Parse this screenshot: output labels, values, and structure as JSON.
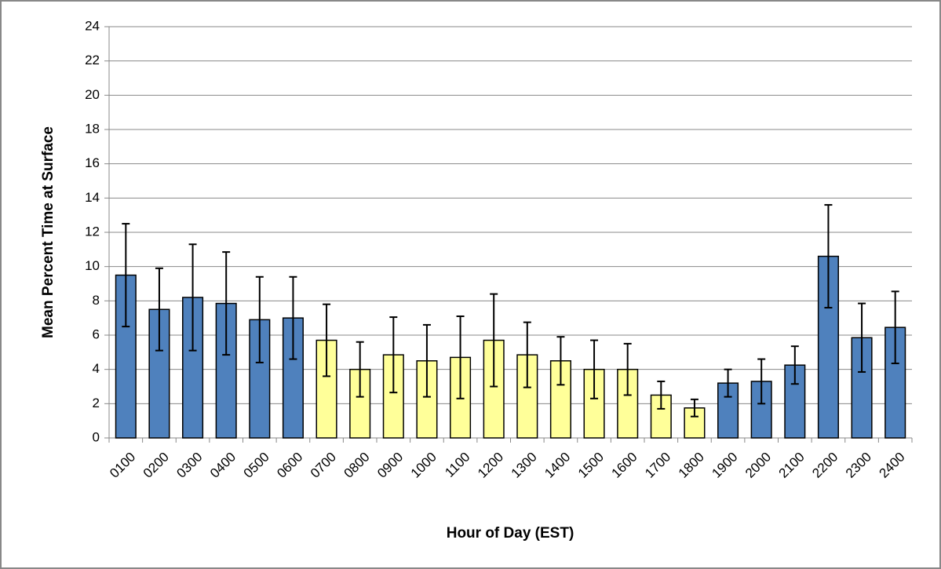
{
  "chart_data": {
    "type": "bar",
    "x_label": "Hour of Day (EST)",
    "y_label": "Mean Percent Time at Surface",
    "categories": [
      "0100",
      "0200",
      "0300",
      "0400",
      "0500",
      "0600",
      "0700",
      "0800",
      "0900",
      "1000",
      "1100",
      "1200",
      "1300",
      "1400",
      "1500",
      "1600",
      "1700",
      "1800",
      "1900",
      "2000",
      "2100",
      "2200",
      "2300",
      "2400"
    ],
    "values": [
      9.5,
      7.5,
      8.2,
      7.85,
      6.9,
      7.0,
      5.7,
      4.0,
      4.85,
      4.5,
      4.7,
      5.7,
      4.85,
      4.5,
      4.0,
      4.0,
      2.5,
      1.75,
      3.2,
      3.3,
      4.25,
      10.6,
      5.85,
      6.45
    ],
    "errors": [
      3.0,
      2.4,
      3.1,
      3.0,
      2.5,
      2.4,
      2.1,
      1.6,
      2.2,
      2.1,
      2.4,
      2.7,
      1.9,
      1.4,
      1.7,
      1.5,
      0.8,
      0.5,
      0.8,
      1.3,
      1.1,
      3.0,
      2.0,
      2.1
    ],
    "colors": [
      "#4f81bd",
      "#4f81bd",
      "#4f81bd",
      "#4f81bd",
      "#4f81bd",
      "#4f81bd",
      "#ffff99",
      "#ffff99",
      "#ffff99",
      "#ffff99",
      "#ffff99",
      "#ffff99",
      "#ffff99",
      "#ffff99",
      "#ffff99",
      "#ffff99",
      "#ffff99",
      "#ffff99",
      "#4f81bd",
      "#4f81bd",
      "#4f81bd",
      "#4f81bd",
      "#4f81bd",
      "#4f81bd"
    ],
    "ylim": [
      0,
      24
    ],
    "yticks": [
      0,
      2,
      4,
      6,
      8,
      10,
      12,
      14,
      16,
      18,
      20,
      22,
      24
    ],
    "grid": true
  }
}
